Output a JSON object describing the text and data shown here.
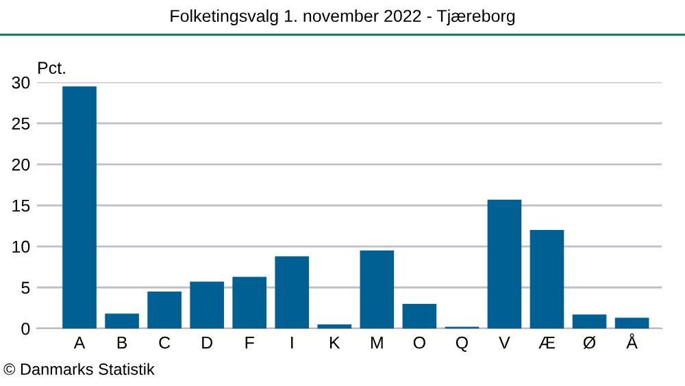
{
  "chart_data": {
    "type": "bar",
    "title": "Folketingsvalg 1. november 2022 - Tjæreborg",
    "ylabel": "Pct.",
    "categories": [
      "A",
      "B",
      "C",
      "D",
      "F",
      "I",
      "K",
      "M",
      "O",
      "Q",
      "V",
      "Æ",
      "Ø",
      "Å"
    ],
    "values": [
      29.5,
      1.8,
      4.5,
      5.7,
      6.3,
      8.8,
      0.5,
      9.5,
      3.0,
      0.2,
      15.7,
      12.0,
      1.7,
      1.3
    ],
    "color": "#005f93",
    "ylim": [
      0,
      30
    ],
    "yticks": [
      0,
      5,
      10,
      15,
      20,
      25,
      30
    ],
    "grid": "y",
    "legend": false,
    "annotations": [
      "© Danmarks Statistik"
    ]
  }
}
